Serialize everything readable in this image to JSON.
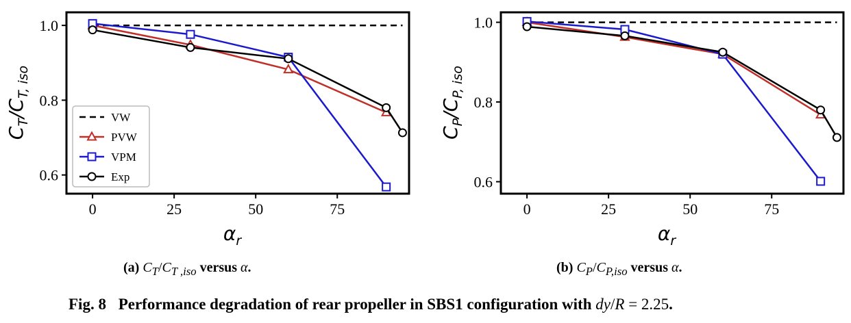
{
  "chart_data": [
    {
      "type": "line",
      "panel": "a",
      "ylabel": "C_T/C_T,iso",
      "xlabel": "α_r",
      "xlim": [
        -8,
        97
      ],
      "ylim": [
        0.55,
        1.035
      ],
      "xticks": [
        0,
        25,
        50,
        75
      ],
      "yticks": [
        0.6,
        0.8,
        1.0
      ],
      "xtick_labels": [
        "0",
        "25",
        "50",
        "75"
      ],
      "ytick_labels": [
        "0.6",
        "0.8",
        "1.0"
      ],
      "legend_position": "lower-left",
      "series": [
        {
          "name": "VW",
          "style": "dashed",
          "marker": "none",
          "color": "#000000",
          "x": [
            0,
            95
          ],
          "y": [
            1.0,
            1.0
          ]
        },
        {
          "name": "PVW",
          "style": "solid",
          "marker": "triangle",
          "color": "#c0302a",
          "x": [
            0,
            30,
            60,
            90
          ],
          "y": [
            1.0,
            0.948,
            0.882,
            0.767
          ]
        },
        {
          "name": "VPM",
          "style": "solid",
          "marker": "square",
          "color": "#1a1acc",
          "x": [
            0,
            30,
            60,
            90
          ],
          "y": [
            1.005,
            0.976,
            0.915,
            0.568
          ]
        },
        {
          "name": "Exp",
          "style": "solid",
          "marker": "circle",
          "color": "#000000",
          "x": [
            0,
            30,
            60,
            90,
            95
          ],
          "y": [
            0.988,
            0.941,
            0.911,
            0.78,
            0.713
          ]
        }
      ]
    },
    {
      "type": "line",
      "panel": "b",
      "ylabel": "C_P/C_P,iso",
      "xlabel": "α_r",
      "xlim": [
        -8,
        97
      ],
      "ylim": [
        0.57,
        1.025
      ],
      "xticks": [
        0,
        25,
        50,
        75
      ],
      "yticks": [
        0.6,
        0.8,
        1.0
      ],
      "xtick_labels": [
        "0",
        "25",
        "50",
        "75"
      ],
      "ytick_labels": [
        "0.6",
        "0.8",
        "1.0"
      ],
      "series": [
        {
          "name": "VW",
          "style": "dashed",
          "marker": "none",
          "color": "#000000",
          "x": [
            0,
            95
          ],
          "y": [
            1.0,
            1.0
          ]
        },
        {
          "name": "PVW",
          "style": "solid",
          "marker": "triangle",
          "color": "#c0302a",
          "x": [
            0,
            30,
            60,
            90
          ],
          "y": [
            1.0,
            0.963,
            0.92,
            0.768
          ]
        },
        {
          "name": "VPM",
          "style": "solid",
          "marker": "square",
          "color": "#1a1acc",
          "x": [
            0,
            30,
            60,
            90
          ],
          "y": [
            1.002,
            0.982,
            0.92,
            0.601
          ]
        },
        {
          "name": "Exp",
          "style": "solid",
          "marker": "circle",
          "color": "#000000",
          "x": [
            0,
            30,
            60,
            90,
            95
          ],
          "y": [
            0.989,
            0.966,
            0.925,
            0.78,
            0.711
          ]
        }
      ]
    }
  ],
  "captions": {
    "a_label": "(a)",
    "a_c1": "C",
    "a_s1": "T",
    "a_slash": "/",
    "a_c2": "C",
    "a_s2": "T ,iso",
    "a_versus": "versus",
    "a_alpha": "α",
    "a_period": ".",
    "b_label": "(b)",
    "b_c1": "C",
    "b_s1": "P",
    "b_slash": "/",
    "b_c2": "C",
    "b_s2": "P,iso",
    "b_versus": "versus",
    "b_alpha": "α",
    "b_period": ".",
    "fig_number": "Fig. 8",
    "fig_text": "Performance degradation of rear propeller in SBS1 configuration with",
    "fig_dy": "dy",
    "fig_slash": "/",
    "fig_R": "R",
    "fig_eq": " = 2.25",
    "fig_period": "."
  }
}
